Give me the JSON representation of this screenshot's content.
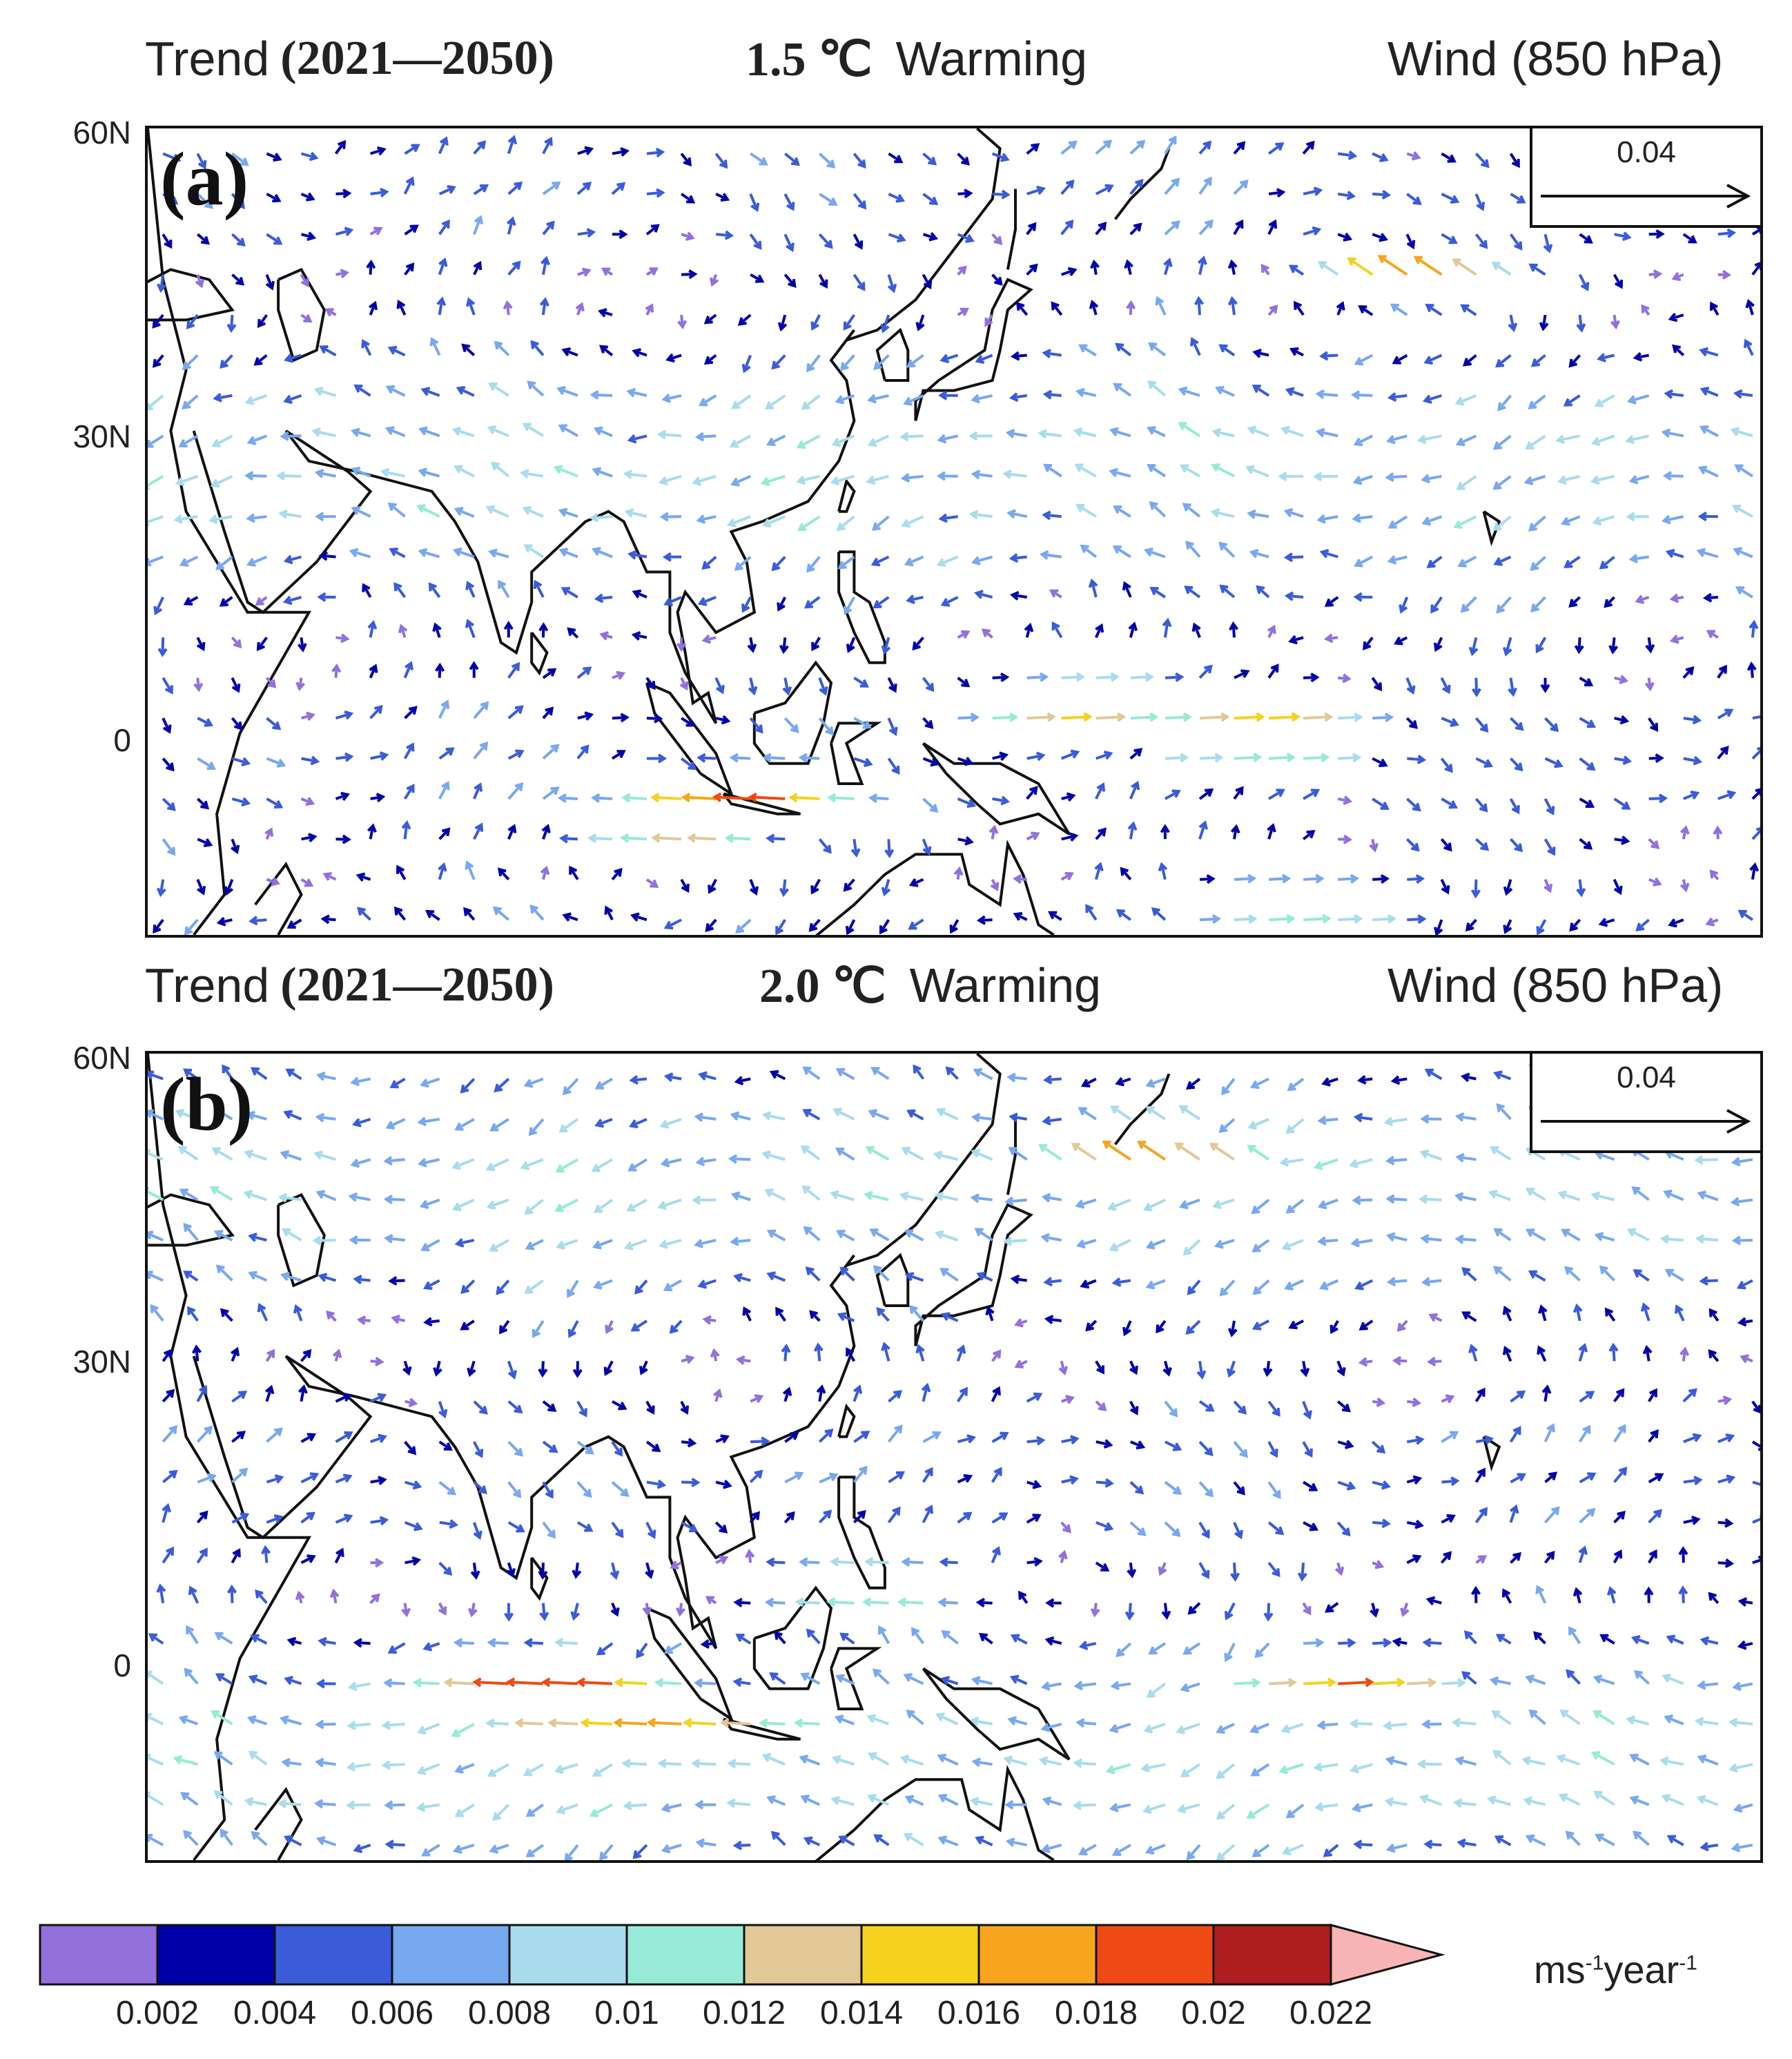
{
  "panels": [
    {
      "id": "a",
      "label": "(a)",
      "title_left_prefix": "Trend",
      "title_left_period": "(2021—2050)",
      "scenario": "1.5 ℃",
      "scenario_suffix": "Warming",
      "title_right": "Wind (850 hPa)",
      "reference_vector": "0.04",
      "y_ticks": [
        "60N",
        "30N",
        "0"
      ],
      "highlights": [
        {
          "lon": 150,
          "lat": 3,
          "mag": 0.02
        },
        {
          "lon": 175,
          "lat": 0,
          "mag": 0.022
        },
        {
          "lon": 110,
          "lat": -6,
          "mag": 0.022
        },
        {
          "lon": 100,
          "lat": -9,
          "mag": 0.02
        },
        {
          "lon": 195,
          "lat": 45,
          "mag": 0.02
        },
        {
          "lon": 180,
          "lat": -17,
          "mag": 0.016
        }
      ]
    },
    {
      "id": "b",
      "label": "(b)",
      "title_left_prefix": "Trend",
      "title_left_period": "(2021—2050)",
      "scenario": "2.0 ℃",
      "scenario_suffix": "Warming",
      "title_right": "Wind (850 hPa)",
      "reference_vector": "0.04",
      "y_ticks": [
        "60N",
        "30N",
        "0"
      ],
      "highlights": [
        {
          "lon": 90,
          "lat": -4,
          "mag": 0.022
        },
        {
          "lon": 80,
          "lat": -2,
          "mag": 0.02
        },
        {
          "lon": 100,
          "lat": -7,
          "mag": 0.018
        },
        {
          "lon": 185,
          "lat": -2,
          "mag": 0.02
        },
        {
          "lon": 160,
          "lat": 50,
          "mag": 0.018
        },
        {
          "lon": 125,
          "lat": 7,
          "mag": 0.016
        }
      ]
    }
  ],
  "colorbar": {
    "colors": [
      "#9370DB",
      "#0000A8",
      "#3A5CD8",
      "#78A8EE",
      "#A8DCEC",
      "#96EAD6",
      "#E2C896",
      "#F6D21E",
      "#F6A51C",
      "#F04A14",
      "#AE1E1E",
      "#F8B4B4"
    ],
    "tick_labels": [
      "0.002",
      "0.004",
      "0.006",
      "0.008",
      "0.01",
      "0.012",
      "0.014",
      "0.016",
      "0.018",
      "0.02",
      "0.022"
    ],
    "units_main": "ms",
    "units_sup1": "-1",
    "units_mid": "year",
    "units_sup2": "-1"
  }
}
